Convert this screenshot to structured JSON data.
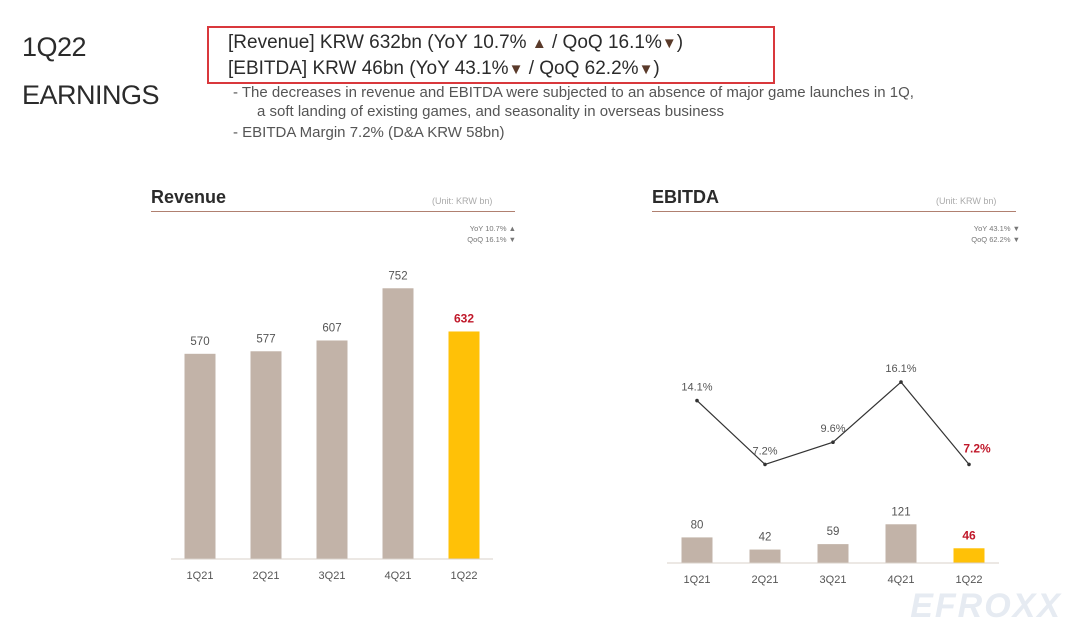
{
  "header": {
    "title_line1": "1Q22",
    "title_line2": "EARNINGS",
    "highlight_line1_text": "[Revenue] KRW 632bn (YoY 10.7% ",
    "highlight_line1_mid": " / QoQ 16.1%",
    "highlight_line1_end": ")",
    "highlight_line2_text": "[EBITDA] KRW 46bn (YoY 43.1%",
    "highlight_line2_mid": " / QoQ 62.2%",
    "highlight_line2_end": ")",
    "arrow_up": "▲",
    "arrow_down": "▼",
    "bullet1_line1": "-   The decreases in revenue and EBITDA were subjected to an absence of major game launches in 1Q,",
    "bullet1_line2": "a soft landing of existing games, and seasonality in overseas business",
    "bullet2": "-   EBITDA Margin 7.2% (D&A KRW 58bn)",
    "highlight_color": "#d9383c"
  },
  "revenue_panel": {
    "title": "Revenue",
    "unit": "(Unit: KRW bn)",
    "legend_line1": "YoY 10.7% ▲",
    "legend_line2": "QoQ 16.1% ▼"
  },
  "ebitda_panel": {
    "title": "EBITDA",
    "unit": "(Unit: KRW bn)",
    "legend_line1": "YoY 43.1% ▼",
    "legend_line2": "QoQ 62.2% ▼"
  },
  "colors": {
    "bar": "#c2b3a8",
    "highlight_bar": "#ffc107",
    "highlight_label": "#c0182a",
    "line": "#333333"
  },
  "watermark": "EFROXX",
  "chart_data": [
    {
      "type": "bar",
      "title": "Revenue",
      "categories": [
        "1Q21",
        "2Q21",
        "3Q21",
        "4Q21",
        "1Q22"
      ],
      "values": [
        570,
        577,
        607,
        752,
        632
      ],
      "value_labels": [
        "570",
        "577",
        "607",
        "752",
        "632"
      ],
      "highlight_index": 4,
      "ylim": [
        0,
        800
      ]
    },
    {
      "type": "bar",
      "title": "EBITDA",
      "categories": [
        "1Q21",
        "2Q21",
        "3Q21",
        "4Q21",
        "1Q22"
      ],
      "values": [
        80,
        42,
        59,
        121,
        46
      ],
      "value_labels": [
        "80",
        "42",
        "59",
        "121",
        "46"
      ],
      "highlight_index": 4,
      "ylim": [
        0,
        500
      ]
    },
    {
      "type": "line",
      "categories": [
        "1Q21",
        "2Q21",
        "3Q21",
        "4Q21",
        "1Q22"
      ],
      "values": [
        14.1,
        7.2,
        9.6,
        16.1,
        7.2
      ],
      "value_labels": [
        "14.1%",
        "7.2%",
        "9.6%",
        "16.1%",
        "7.2%"
      ],
      "highlight_index": 4,
      "ylim": [
        0,
        20
      ]
    }
  ]
}
